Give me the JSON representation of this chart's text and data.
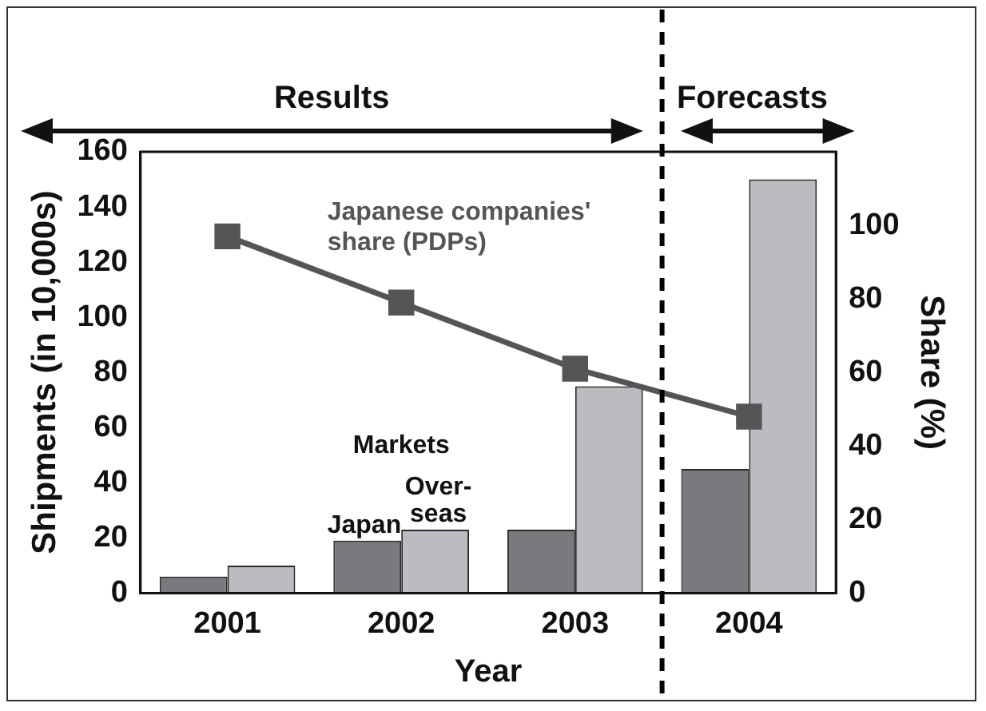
{
  "chart_data": {
    "type": "bar",
    "xlabel": "Year",
    "ylabel": "Shipments (in 10,000s)",
    "y2label": "Share (%)",
    "legend_title": "Markets",
    "x": [
      2001,
      2002,
      2003,
      2004
    ],
    "xlim": [
      2000.5,
      2004.5
    ],
    "xticks": [
      2001,
      2002,
      2003,
      2004
    ],
    "ylim": [
      0,
      160
    ],
    "yticks": [
      0,
      20,
      40,
      60,
      80,
      100,
      120,
      140,
      160
    ],
    "y2lim": [
      0,
      120
    ],
    "y2ticks": [
      0,
      20,
      40,
      60,
      80,
      100
    ],
    "marker": "square",
    "series": [
      {
        "name": "Japan",
        "color": "#7a7a7e",
        "values": [
          6,
          19,
          23,
          45
        ]
      },
      {
        "name": "Over- seas",
        "color": "#bbbcc0",
        "values": [
          10,
          23,
          75,
          150
        ]
      },
      {
        "name": "Japanese companies' share (PDPs)",
        "type": "line",
        "axis": "y2",
        "color": "#555558",
        "values": [
          97,
          79,
          61,
          48
        ]
      }
    ],
    "ref_lines": [
      {
        "axis": "x",
        "value": 2003.5,
        "line_style": "dashed",
        "color": "#000000"
      }
    ],
    "annotations": [
      "Results",
      "Forecasts"
    ]
  }
}
